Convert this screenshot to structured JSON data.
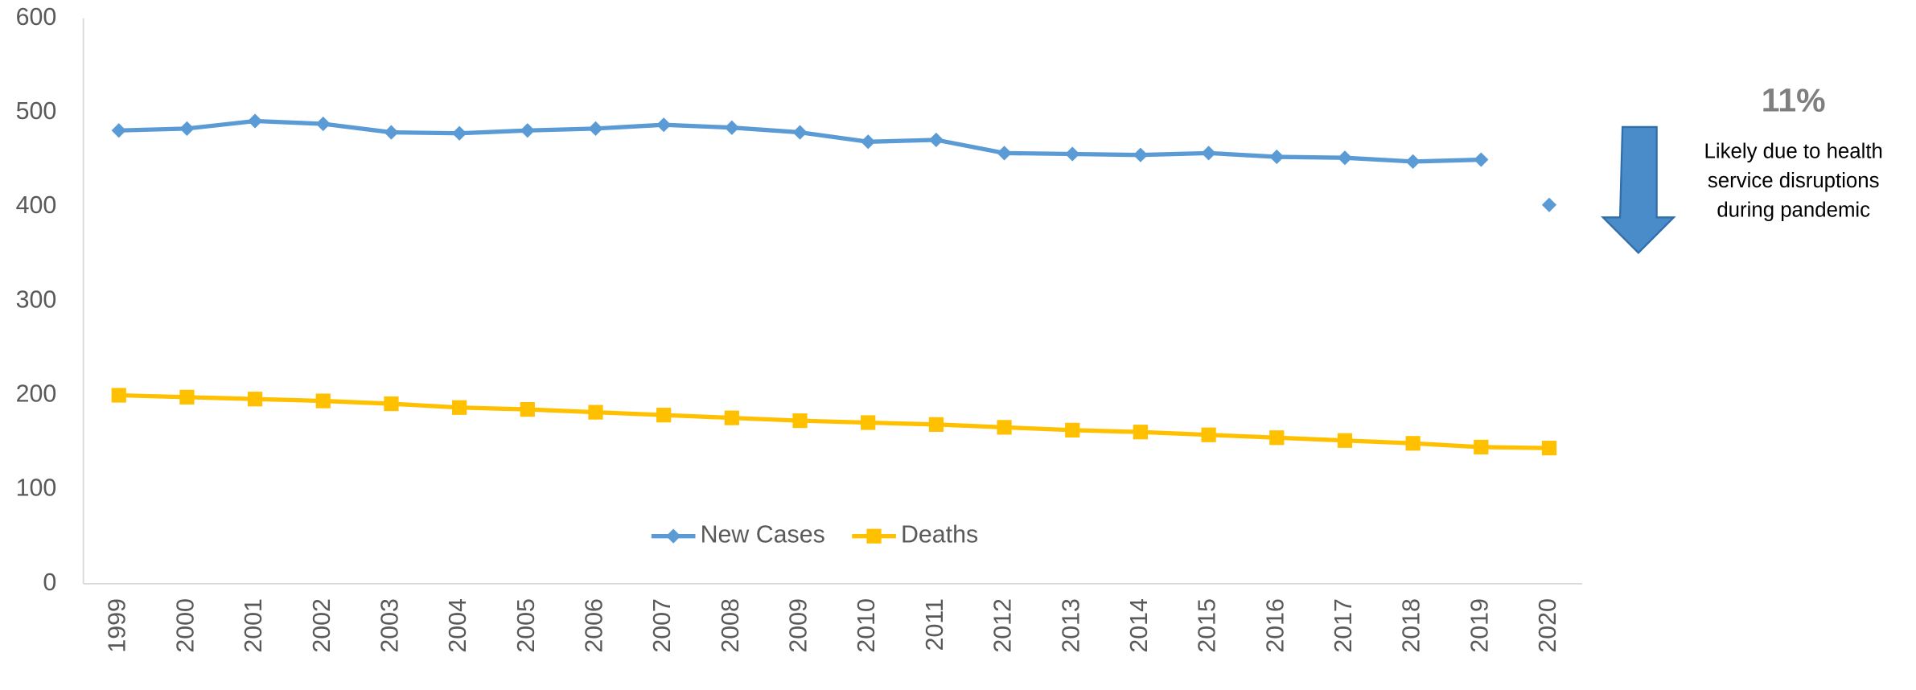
{
  "chart_data": {
    "type": "line",
    "categories": [
      "1999",
      "2000",
      "2001",
      "2002",
      "2003",
      "2004",
      "2005",
      "2006",
      "2007",
      "2008",
      "2009",
      "2010",
      "2011",
      "2012",
      "2013",
      "2014",
      "2015",
      "2016",
      "2017",
      "2018",
      "2019",
      "2020"
    ],
    "series": [
      {
        "name": "New Cases",
        "color": "#5B9BD5",
        "marker": "diamond",
        "gap_before_index": 21,
        "values": [
          481,
          483,
          491,
          488,
          479,
          478,
          481,
          483,
          487,
          484,
          479,
          469,
          471,
          457,
          456,
          455,
          457,
          453,
          452,
          448,
          450,
          402
        ]
      },
      {
        "name": "Deaths",
        "color": "#FFC000",
        "marker": "square",
        "values": [
          200,
          198,
          196,
          194,
          191,
          187,
          185,
          182,
          179,
          176,
          173,
          171,
          169,
          166,
          163,
          161,
          158,
          155,
          152,
          149,
          145,
          144
        ]
      }
    ],
    "ylim": [
      0,
      600
    ],
    "yticks": [
      0,
      100,
      200,
      300,
      400,
      500,
      600
    ],
    "grid": false,
    "legend": "bottom",
    "annotation": {
      "headline": "11%",
      "lines": [
        "Likely due to health",
        "service disruptions",
        "during pandemic"
      ]
    }
  }
}
